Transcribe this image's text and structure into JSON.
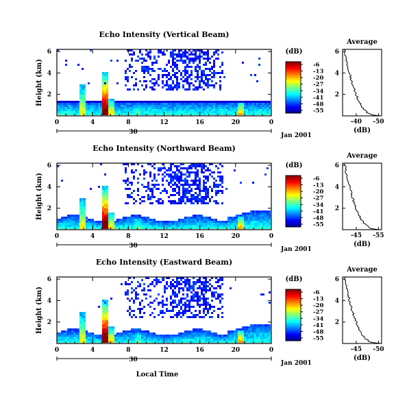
{
  "chart_data": [
    {
      "type": "heatmap",
      "title": "Echo Intensity (Vertical Beam)",
      "ylabel": "Height (km)",
      "xticks": [
        "0",
        "4",
        "8",
        "12",
        "16",
        "20",
        "0"
      ],
      "yticks": [
        "2",
        "4",
        "6"
      ],
      "date_marker": "30",
      "date_label": "Jan 2001",
      "colorbar": {
        "unit": "(dB)",
        "ticks": [
          "-6",
          "-13",
          "-20",
          "-27",
          "-34",
          "-41",
          "-48",
          "-55"
        ]
      },
      "average": {
        "title": "Average",
        "xlabel": "(dB)",
        "xticks": [
          "-40",
          "-50"
        ],
        "yticks": [
          "2",
          "4",
          "6"
        ]
      }
    },
    {
      "type": "heatmap",
      "title": "Echo Intensity (Northward Beam)",
      "ylabel": "Height (km)",
      "xticks": [
        "0",
        "4",
        "8",
        "12",
        "16",
        "20",
        "0"
      ],
      "yticks": [
        "2",
        "4",
        "6"
      ],
      "date_marker": "30",
      "date_label": "Jan 2001",
      "colorbar": {
        "unit": "(dB)",
        "ticks": [
          "-6",
          "-13",
          "-20",
          "-27",
          "-34",
          "-41",
          "-48",
          "-55"
        ]
      },
      "average": {
        "title": "Average",
        "xlabel": "(dB)",
        "xticks": [
          "-45",
          "-55"
        ],
        "yticks": [
          "2",
          "4",
          "6"
        ]
      }
    },
    {
      "type": "heatmap",
      "title": "Echo Intensity (Eastward Beam)",
      "ylabel": "Height (km)",
      "xticks": [
        "0",
        "4",
        "8",
        "12",
        "16",
        "20",
        "0"
      ],
      "yticks": [
        "2",
        "4",
        "6"
      ],
      "date_marker": "30",
      "date_label": "Jan 2001",
      "xlabel": "Local Time",
      "colorbar": {
        "unit": "(dB)",
        "ticks": [
          "-6",
          "-13",
          "-20",
          "-27",
          "-34",
          "-41",
          "-48",
          "-55"
        ]
      },
      "average": {
        "title": "Average",
        "xlabel": "(dB)",
        "xticks": [
          "-45",
          "-50"
        ],
        "yticks": [
          "2",
          "4",
          "6"
        ]
      }
    }
  ]
}
